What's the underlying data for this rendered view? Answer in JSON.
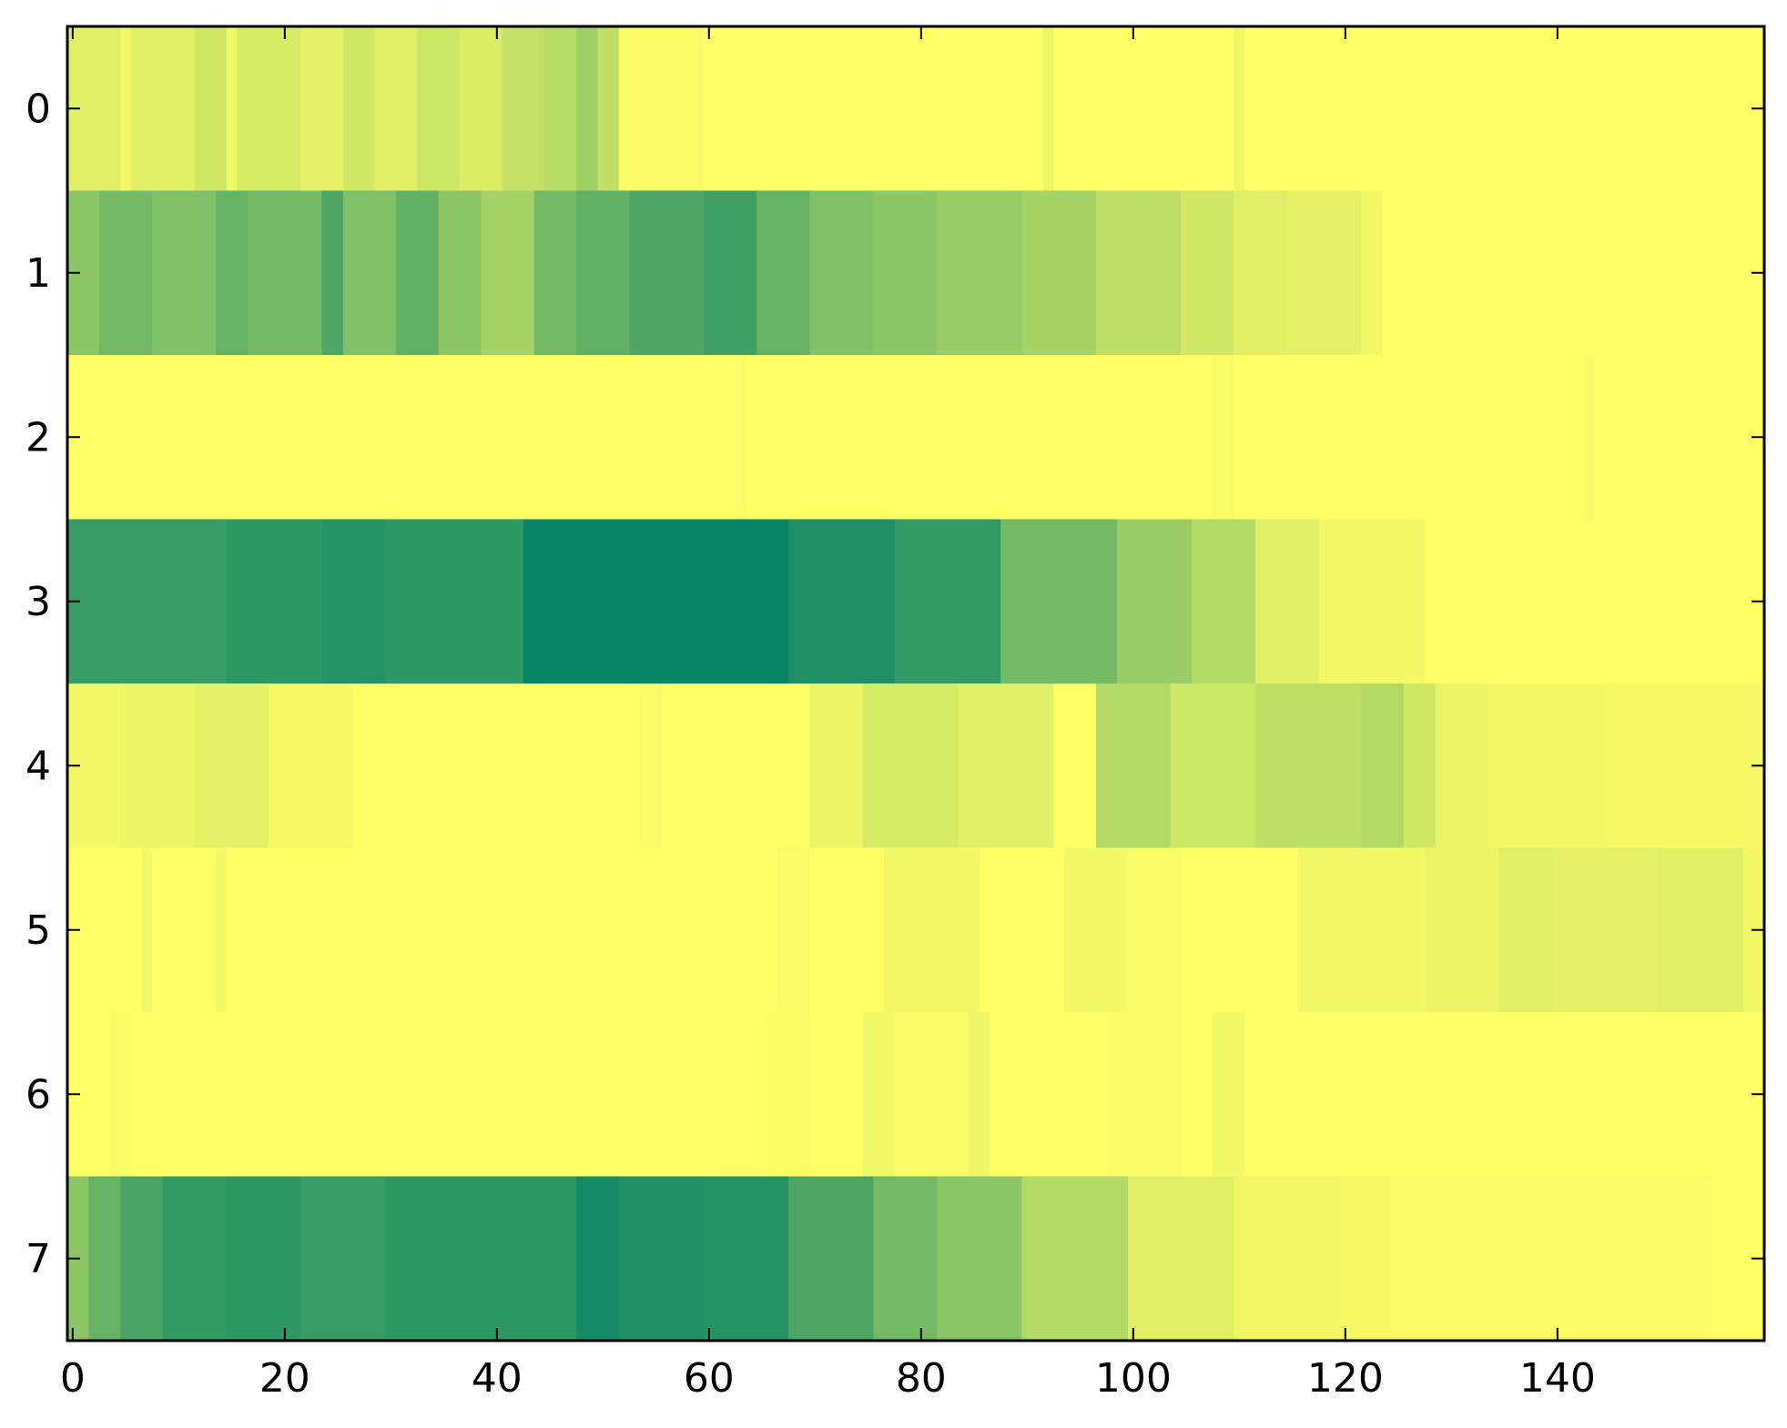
{
  "chart_data": {
    "type": "heatmap",
    "title": "",
    "xlabel": "",
    "ylabel": "",
    "x_ticks": [
      0,
      20,
      40,
      60,
      80,
      100,
      120,
      140
    ],
    "y_ticks": [
      0,
      1,
      2,
      3,
      4,
      5,
      6,
      7
    ],
    "xlim": [
      -0.5,
      159.5
    ],
    "ylim": [
      7.5,
      -0.5
    ],
    "n_cols": 160,
    "colormap": "summer_r",
    "colormap_endpoints": {
      "low": "#ffff66",
      "high": "#008066"
    },
    "grid": false,
    "legend": "none",
    "rows": [
      {
        "row": 0,
        "segments": [
          [
            0,
            5,
            0.12
          ],
          [
            5,
            6,
            0.05
          ],
          [
            6,
            12,
            0.12
          ],
          [
            12,
            15,
            0.18
          ],
          [
            15,
            16,
            0.05
          ],
          [
            16,
            22,
            0.16
          ],
          [
            22,
            26,
            0.1
          ],
          [
            26,
            29,
            0.18
          ],
          [
            29,
            33,
            0.12
          ],
          [
            33,
            37,
            0.2
          ],
          [
            37,
            41,
            0.14
          ],
          [
            41,
            45,
            0.24
          ],
          [
            45,
            48,
            0.28
          ],
          [
            48,
            50,
            0.38
          ],
          [
            50,
            52,
            0.25
          ],
          [
            52,
            60,
            0.03
          ],
          [
            60,
            92,
            0.0
          ],
          [
            92,
            93,
            0.08
          ],
          [
            93,
            110,
            0.0
          ],
          [
            110,
            111,
            0.06
          ],
          [
            111,
            160,
            0.0
          ]
        ]
      },
      {
        "row": 1,
        "segments": [
          [
            0,
            3,
            0.45
          ],
          [
            3,
            8,
            0.55
          ],
          [
            8,
            14,
            0.5
          ],
          [
            14,
            17,
            0.6
          ],
          [
            17,
            24,
            0.55
          ],
          [
            24,
            26,
            0.7
          ],
          [
            26,
            31,
            0.5
          ],
          [
            31,
            35,
            0.62
          ],
          [
            35,
            39,
            0.45
          ],
          [
            39,
            44,
            0.35
          ],
          [
            44,
            48,
            0.55
          ],
          [
            48,
            53,
            0.62
          ],
          [
            53,
            60,
            0.7
          ],
          [
            60,
            65,
            0.75
          ],
          [
            65,
            70,
            0.6
          ],
          [
            70,
            76,
            0.5
          ],
          [
            76,
            82,
            0.45
          ],
          [
            82,
            90,
            0.4
          ],
          [
            90,
            97,
            0.35
          ],
          [
            97,
            105,
            0.25
          ],
          [
            105,
            110,
            0.18
          ],
          [
            110,
            115,
            0.12
          ],
          [
            115,
            122,
            0.1
          ],
          [
            122,
            124,
            0.05
          ],
          [
            124,
            160,
            0.0
          ]
        ]
      },
      {
        "row": 2,
        "segments": [
          [
            0,
            63,
            0.0
          ],
          [
            63,
            64,
            0.03
          ],
          [
            64,
            108,
            0.0
          ],
          [
            108,
            110,
            0.03
          ],
          [
            110,
            143,
            0.0
          ],
          [
            143,
            144,
            0.03
          ],
          [
            144,
            160,
            0.0
          ]
        ]
      },
      {
        "row": 3,
        "segments": [
          [
            0,
            15,
            0.78
          ],
          [
            15,
            24,
            0.82
          ],
          [
            24,
            30,
            0.85
          ],
          [
            30,
            43,
            0.82
          ],
          [
            43,
            68,
            0.97
          ],
          [
            68,
            78,
            0.88
          ],
          [
            78,
            88,
            0.8
          ],
          [
            88,
            99,
            0.55
          ],
          [
            99,
            106,
            0.4
          ],
          [
            106,
            112,
            0.3
          ],
          [
            112,
            118,
            0.12
          ],
          [
            118,
            128,
            0.05
          ],
          [
            128,
            160,
            0.0
          ]
        ]
      },
      {
        "row": 4,
        "segments": [
          [
            0,
            5,
            0.05
          ],
          [
            5,
            12,
            0.08
          ],
          [
            12,
            19,
            0.1
          ],
          [
            19,
            27,
            0.04
          ],
          [
            27,
            54,
            0.0
          ],
          [
            54,
            56,
            0.03
          ],
          [
            56,
            70,
            0.0
          ],
          [
            70,
            75,
            0.08
          ],
          [
            75,
            84,
            0.16
          ],
          [
            84,
            93,
            0.12
          ],
          [
            93,
            97,
            0.0
          ],
          [
            97,
            104,
            0.3
          ],
          [
            104,
            112,
            0.2
          ],
          [
            112,
            122,
            0.25
          ],
          [
            122,
            126,
            0.3
          ],
          [
            126,
            129,
            0.18
          ],
          [
            129,
            134,
            0.08
          ],
          [
            134,
            145,
            0.05
          ],
          [
            145,
            160,
            0.04
          ]
        ]
      },
      {
        "row": 5,
        "segments": [
          [
            0,
            7,
            0.0
          ],
          [
            7,
            8,
            0.05
          ],
          [
            8,
            14,
            0.0
          ],
          [
            14,
            15,
            0.05
          ],
          [
            15,
            67,
            0.0
          ],
          [
            67,
            70,
            0.03
          ],
          [
            70,
            77,
            0.0
          ],
          [
            77,
            86,
            0.05
          ],
          [
            86,
            94,
            0.0
          ],
          [
            94,
            100,
            0.05
          ],
          [
            100,
            105,
            0.03
          ],
          [
            105,
            116,
            0.0
          ],
          [
            116,
            122,
            0.06
          ],
          [
            122,
            128,
            0.05
          ],
          [
            128,
            135,
            0.08
          ],
          [
            135,
            140,
            0.12
          ],
          [
            140,
            150,
            0.1
          ],
          [
            150,
            158,
            0.12
          ],
          [
            158,
            160,
            0.05
          ]
        ]
      },
      {
        "row": 6,
        "segments": [
          [
            0,
            4,
            0.0
          ],
          [
            4,
            6,
            0.03
          ],
          [
            6,
            66,
            0.0
          ],
          [
            66,
            70,
            0.02
          ],
          [
            70,
            75,
            0.0
          ],
          [
            75,
            78,
            0.05
          ],
          [
            78,
            85,
            0.03
          ],
          [
            85,
            87,
            0.07
          ],
          [
            87,
            98,
            0.0
          ],
          [
            98,
            105,
            0.03
          ],
          [
            105,
            108,
            0.0
          ],
          [
            108,
            111,
            0.05
          ],
          [
            111,
            160,
            0.0
          ]
        ]
      },
      {
        "row": 7,
        "segments": [
          [
            0,
            2,
            0.45
          ],
          [
            2,
            5,
            0.6
          ],
          [
            5,
            9,
            0.72
          ],
          [
            9,
            15,
            0.8
          ],
          [
            15,
            22,
            0.82
          ],
          [
            22,
            30,
            0.78
          ],
          [
            30,
            40,
            0.82
          ],
          [
            40,
            48,
            0.82
          ],
          [
            48,
            52,
            0.92
          ],
          [
            52,
            60,
            0.88
          ],
          [
            60,
            68,
            0.85
          ],
          [
            68,
            76,
            0.7
          ],
          [
            76,
            82,
            0.55
          ],
          [
            82,
            90,
            0.45
          ],
          [
            90,
            100,
            0.3
          ],
          [
            100,
            110,
            0.12
          ],
          [
            110,
            120,
            0.06
          ],
          [
            120,
            125,
            0.04
          ],
          [
            125,
            155,
            0.03
          ],
          [
            155,
            160,
            0.0
          ]
        ]
      }
    ]
  }
}
